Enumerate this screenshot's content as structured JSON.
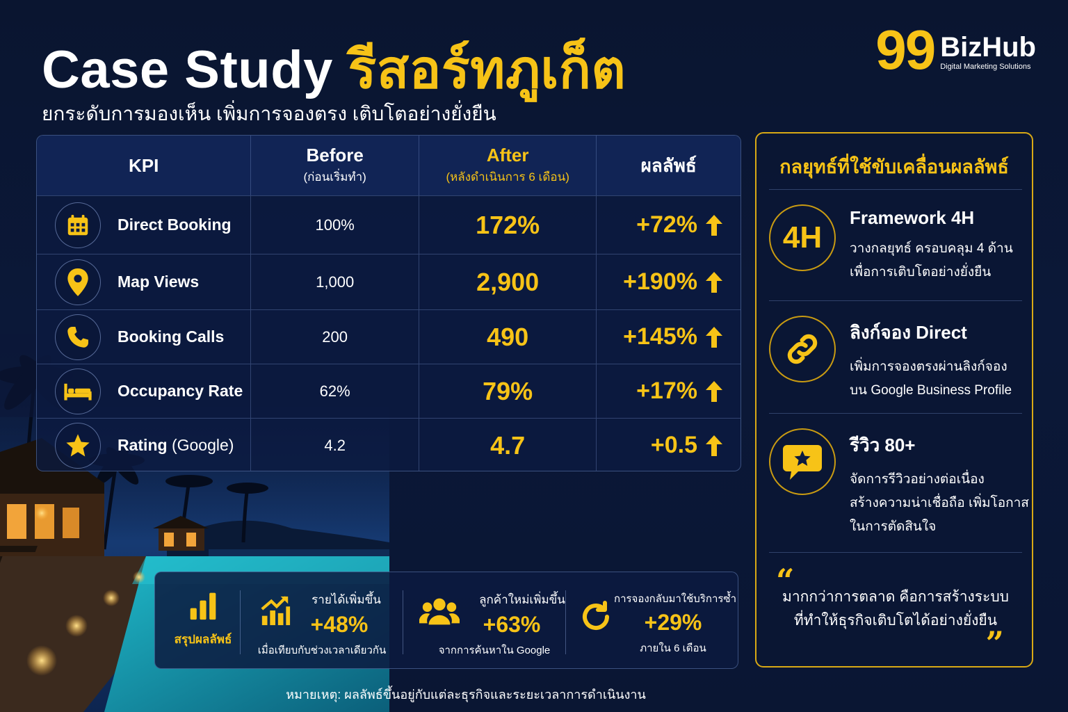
{
  "header": {
    "title_en": "Case Study ",
    "title_th": "รีสอร์ทภูเก็ต",
    "subtitle": "ยกระดับการมองเห็น เพิ่มการจองตรง เติบโตอย่างยั่งยืน"
  },
  "logo": {
    "number": "99",
    "name": "BizHub",
    "tagline": "Digital Marketing Solutions"
  },
  "table": {
    "headers": {
      "kpi": "KPI",
      "before": "Before",
      "before_sub": "(ก่อนเริ่มทำ)",
      "after": "After",
      "after_sub": "(หลังดำเนินการ 6 เดือน)",
      "result": "ผลลัพธ์"
    },
    "rows": [
      {
        "icon": "calendar-icon",
        "label": "Direct Booking",
        "label_extra": "",
        "before": "100%",
        "after": "172%",
        "result": "+72%"
      },
      {
        "icon": "map-pin-icon",
        "label": "Map Views",
        "label_extra": "",
        "before": "1,000",
        "after": "2,900",
        "result": "+190%"
      },
      {
        "icon": "phone-icon",
        "label": "Booking Calls",
        "label_extra": "",
        "before": "200",
        "after": "490",
        "result": "+145%"
      },
      {
        "icon": "bed-icon",
        "label": "Occupancy Rate",
        "label_extra": "",
        "before": "62%",
        "after": "79%",
        "result": "+17%"
      },
      {
        "icon": "star-icon",
        "label": "Rating",
        "label_extra": " (Google)",
        "before": "4.2",
        "after": "4.7",
        "result": "+0.5"
      }
    ]
  },
  "strategy": {
    "title": "กลยุทธ์ที่ใช้ขับเคลื่อนผลลัพธ์",
    "items": [
      {
        "icon": "4h-icon",
        "icon_text": "4H",
        "title": "Framework 4H",
        "lines": [
          "วางกลยุทธ์ ครอบคลุม 4 ด้าน",
          "เพื่อการเติบโตอย่างยั่งยืน"
        ]
      },
      {
        "icon": "link-icon",
        "title": "ลิงก์จอง Direct",
        "lines": [
          "เพิ่มการจองตรงผ่านลิงก์จอง",
          "บน Google Business Profile"
        ]
      },
      {
        "icon": "review-star-bubble-icon",
        "title": "รีวิว 80+",
        "lines": [
          "จัดการรีวิวอย่างต่อเนื่อง",
          "สร้างความน่าเชื่อถือ เพิ่มโอกาส",
          "ในการตัดสินใจ"
        ]
      }
    ],
    "quote_open": "“",
    "quote_close": "”",
    "quote_lines": [
      "มากกว่าการตลาด คือการสร้างระบบ",
      "ที่ทำให้ธุรกิจเติบโตได้อย่างยั่งยืน"
    ]
  },
  "summary": {
    "label": "สรุปผลลัพธ์",
    "metrics": [
      {
        "icon": "growth-chart-icon",
        "top": "รายได้เพิ่มขึ้น",
        "value": "+48%",
        "sub": "เมื่อเทียบกับช่วงเวลาเดียวกัน"
      },
      {
        "icon": "users-icon",
        "top": "ลูกค้าใหม่เพิ่มขึ้น",
        "value": "+63%",
        "sub": "จากการค้นหาใน Google"
      },
      {
        "icon": "repeat-icon",
        "top": "การจองกลับมาใช้บริการซ้ำ",
        "value": "+29%",
        "sub": "ภายใน 6 เดือน"
      }
    ]
  },
  "footnote": "หมายเหตุ: ผลลัพธ์ขึ้นอยู่กับแต่ละธุรกิจและระยะเวลาการดำเนินงาน",
  "colors": {
    "accent": "#f7c317",
    "background": "#0b1838"
  }
}
